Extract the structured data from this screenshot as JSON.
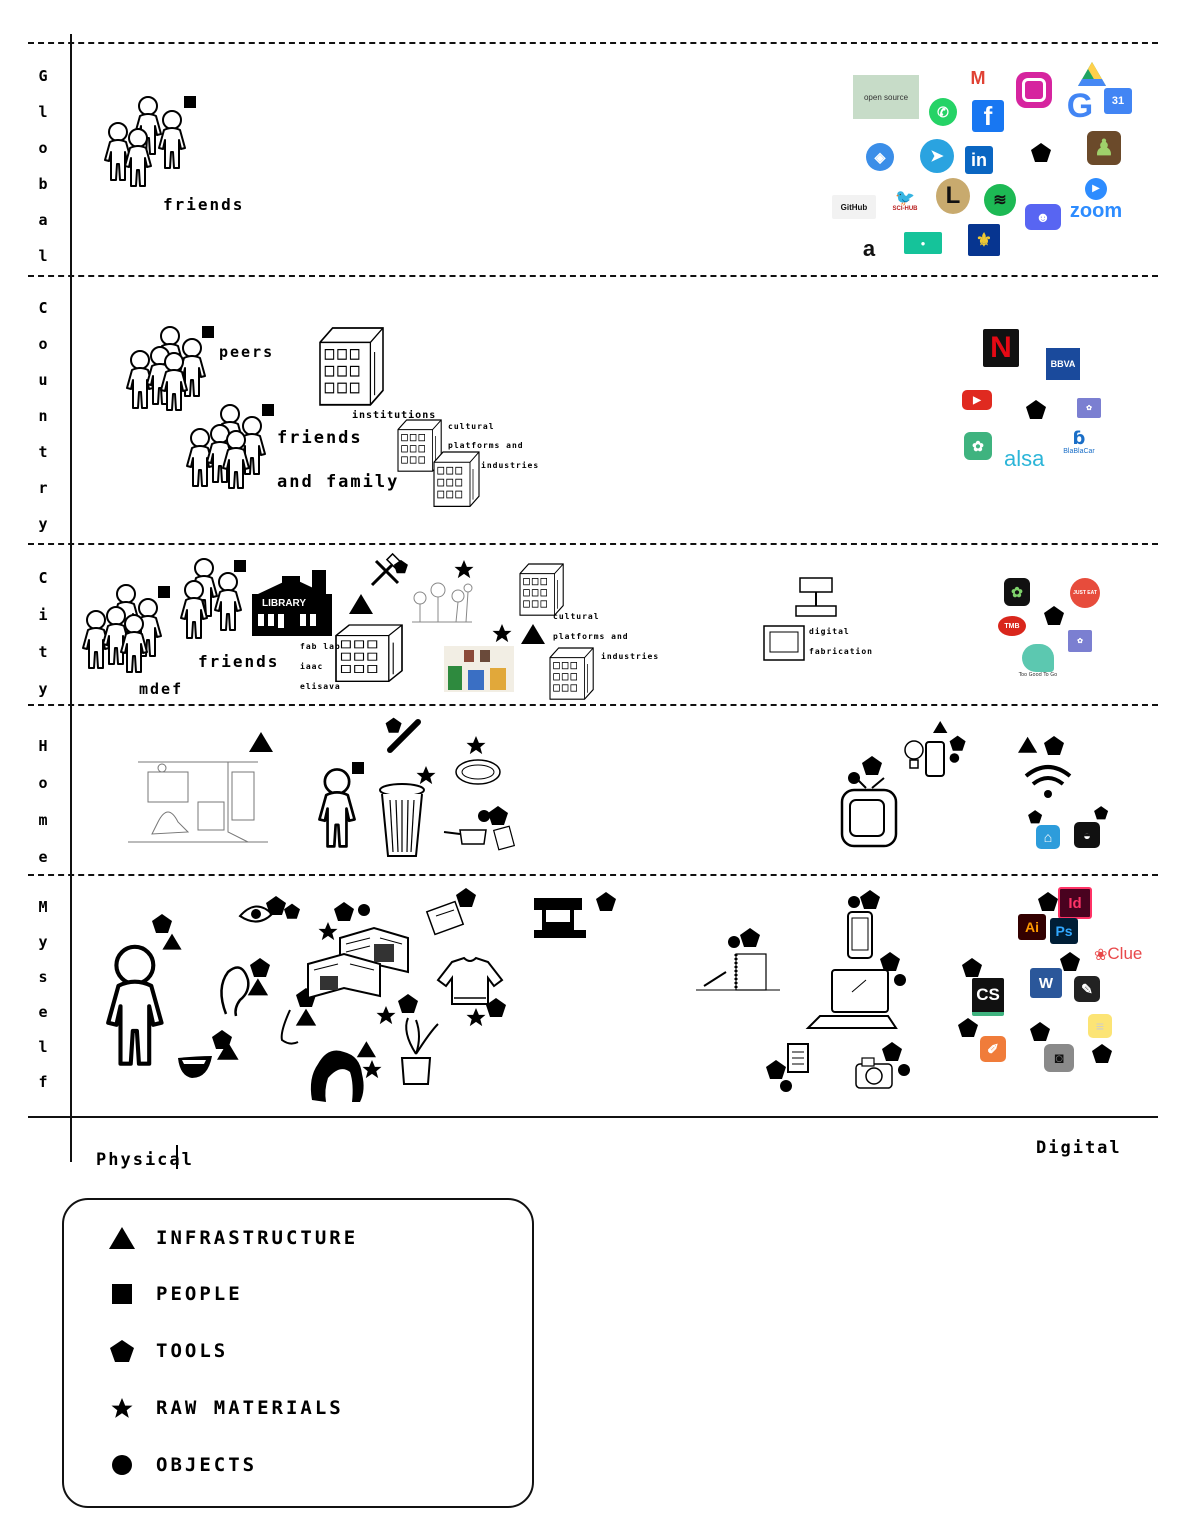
{
  "scale_levels": [
    {
      "id": "global",
      "letters": [
        "G",
        "l",
        "o",
        "b",
        "a",
        "l"
      ]
    },
    {
      "id": "country",
      "letters": [
        "C",
        "o",
        "u",
        "n",
        "t",
        "r",
        "y"
      ]
    },
    {
      "id": "city",
      "letters": [
        "C",
        "i",
        "t",
        "y"
      ]
    },
    {
      "id": "home",
      "letters": [
        "H",
        "o",
        "m",
        "e"
      ]
    },
    {
      "id": "myself",
      "letters": [
        "M",
        "y",
        "s",
        "e",
        "l",
        "f"
      ]
    }
  ],
  "axis": {
    "left": "Physical",
    "right": "Digital"
  },
  "global": {
    "friends": "friends"
  },
  "country": {
    "peers": "peers",
    "institutions": "institutions",
    "friends": "friends",
    "and_family": "and family",
    "cultural": "cultural",
    "platforms_and": "platforms and",
    "industries": "industries"
  },
  "city": {
    "mdef": "mdef",
    "friends": "friends",
    "library": "LIBRARY",
    "fab_lab": "fab lab",
    "iaac": "iaac",
    "elisava": "elisava",
    "cultural": "cultural",
    "platforms_and": "platforms and",
    "industries": "industries",
    "digital": "digital",
    "fabrication": "fabrication"
  },
  "logos": {
    "open_source": "open source",
    "github": "GitHub",
    "scihub": "SCI-HUB",
    "zoom": "zoom",
    "amazon": "a",
    "netflix": "N",
    "bbva": "BBVA",
    "alsa": "alsa",
    "blablacar": "BlaBlaCar",
    "just_eat": "JUST EAT",
    "tmb": "TMB",
    "too_good": "Too Good To Go",
    "clue": "Clue",
    "ai": "Ai",
    "ps": "Ps",
    "id": "Id",
    "cs": "CS",
    "word": "W",
    "in": "in",
    "cal": "31"
  },
  "legend": [
    {
      "symbol": "triangle",
      "label": "INFRASTRUCTURE"
    },
    {
      "symbol": "square",
      "label": "PEOPLE"
    },
    {
      "symbol": "pentagon",
      "label": "TOOLS"
    },
    {
      "symbol": "star",
      "label": "RAW MATERIALS"
    },
    {
      "symbol": "circle",
      "label": "OBJECTS"
    }
  ],
  "colors": {
    "netflix": "#b1060f",
    "bbva": "#1a4a9c",
    "youtube": "#e02a20",
    "instagram": "#d6249f",
    "facebook": "#1877f2",
    "whatsapp": "#25d366",
    "telegram": "#2aa3e0",
    "linkedin": "#0a66c2",
    "spotify": "#1db954",
    "discord": "#5865f2",
    "zoom": "#2d8cff",
    "alsa": "#2cb5d8",
    "green": "#2e7d32",
    "adobe_ai": "#ff9a00",
    "adobe_ps": "#31a8ff",
    "adobe_id": "#ff3366",
    "clue": "#e8484a"
  }
}
